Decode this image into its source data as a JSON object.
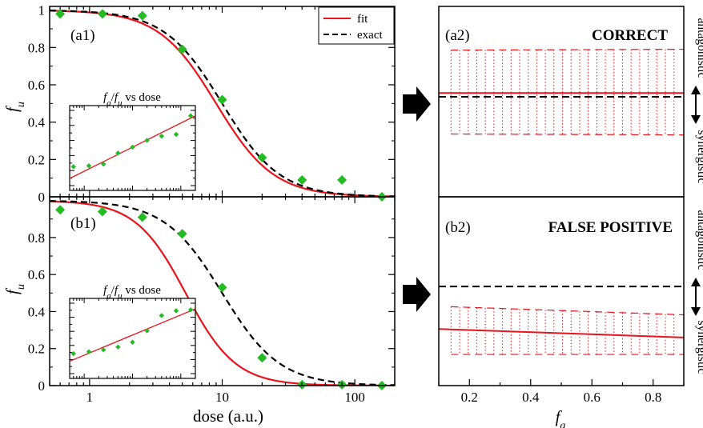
{
  "chart_data": [
    {
      "id": "a1",
      "type": "line",
      "panel_label": "(a1)",
      "xlabel": "",
      "ylabel": "f_u",
      "xscale": "log",
      "xlim": [
        0.5,
        200
      ],
      "ylim": [
        0,
        1.02
      ],
      "xticks": [],
      "yticks": [
        0,
        0.2,
        0.4,
        0.6,
        0.8,
        1
      ],
      "legend": {
        "position": "top-right",
        "entries": [
          "fit",
          "exact"
        ]
      },
      "series": [
        {
          "name": "fit",
          "style": "solid",
          "color": "#e8141c",
          "dm": 9.0,
          "m": 2.0
        },
        {
          "name": "exact",
          "style": "dashed",
          "color": "#000000",
          "dm": 10.0,
          "m": 2.0
        }
      ],
      "points": {
        "color": "#22bb22",
        "x": [
          0.6,
          1.25,
          2.5,
          5,
          10,
          20,
          40,
          80,
          160
        ],
        "y": [
          0.98,
          0.98,
          0.97,
          0.79,
          0.52,
          0.21,
          0.09,
          0.09,
          0.0
        ]
      },
      "inset": {
        "title_text": "vs dose",
        "title_num": "f",
        "title_num_sub": "a",
        "title_den": "f",
        "title_den_sub": "u",
        "points_x": [
          0.6,
          1.25,
          2.5,
          5,
          10,
          20,
          40,
          80,
          160
        ],
        "points_y": [
          0.14,
          0.145,
          0.155,
          0.22,
          0.255,
          0.295,
          0.32,
          0.33,
          0.44
        ],
        "line_y": [
          0.07,
          0.44
        ]
      }
    },
    {
      "id": "b1",
      "type": "line",
      "panel_label": "(b1)",
      "xlabel": "dose (a.u.)",
      "ylabel": "f_u",
      "xscale": "log",
      "xlim": [
        0.5,
        200
      ],
      "ylim": [
        0,
        1.02
      ],
      "xticks": [
        "1",
        "10",
        "100"
      ],
      "yticks": [
        0,
        0.2,
        0.4,
        0.6,
        0.8
      ],
      "series": [
        {
          "name": "fit",
          "style": "solid",
          "color": "#e8141c",
          "dm": 5.3,
          "m": 2.3
        },
        {
          "name": "exact",
          "style": "dashed",
          "color": "#000000",
          "dm": 10.0,
          "m": 2.0
        }
      ],
      "points": {
        "color": "#22bb22",
        "x": [
          0.6,
          1.25,
          2.5,
          5,
          10,
          20,
          40,
          80,
          160
        ],
        "y": [
          0.95,
          0.94,
          0.91,
          0.82,
          0.53,
          0.15,
          0.005,
          0.005,
          0.0
        ]
      },
      "inset": {
        "title_text": "vs dose",
        "title_num": "f",
        "title_num_sub": "a",
        "title_den": "f",
        "title_den_sub": "u",
        "points_x": [
          0.6,
          1.25,
          2.5,
          5,
          10,
          20,
          40,
          80,
          160
        ],
        "points_y": [
          0.13,
          0.14,
          0.15,
          0.165,
          0.19,
          0.25,
          0.33,
          0.355,
          0.36
        ],
        "line_y": [
          0.09,
          0.365
        ]
      }
    },
    {
      "id": "a2",
      "type": "line",
      "panel_label": "(a2)",
      "status": "CORRECT",
      "status_color": "#16c216",
      "side_top": "antagonistic",
      "side_bottom": "synergistic",
      "xlim": [
        0.1,
        0.9
      ],
      "ylim": [
        0,
        1
      ],
      "fit_y": [
        0.545,
        0.545
      ],
      "exact_y": 0.525,
      "upper_y": [
        0.77,
        0.775
      ],
      "lower_y": [
        0.33,
        0.325
      ]
    },
    {
      "id": "b2",
      "type": "line",
      "panel_label": "(b2)",
      "status": "FALSE POSITIVE",
      "status_color": "#e8141c",
      "side_top": "antagonistic",
      "side_bottom": "synergistic",
      "xlabel": "f_a",
      "xticks": [
        "0.2",
        "0.4",
        "0.6",
        "0.8"
      ],
      "xtick_values": [
        0.2,
        0.4,
        0.6,
        0.8
      ],
      "xlim": [
        0.1,
        0.9
      ],
      "ylim": [
        0,
        1
      ],
      "fit_y": [
        0.3,
        0.255
      ],
      "exact_y": 0.525,
      "upper_y": [
        0.42,
        0.375
      ],
      "lower_y": [
        0.165,
        0.165
      ]
    }
  ]
}
